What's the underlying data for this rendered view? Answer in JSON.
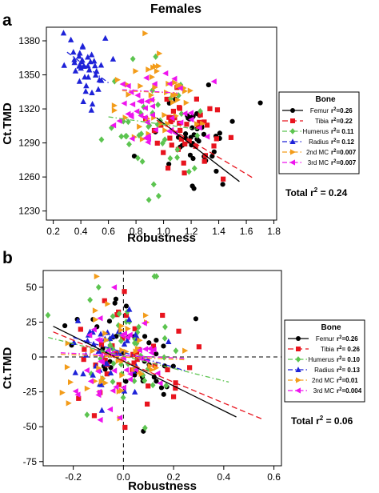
{
  "chart_data": [
    {
      "type": "scatter",
      "panel_label": "a",
      "title": "Females",
      "xlabel": "Robustness",
      "ylabel": "Ct.TMD",
      "xlim": [
        0.15,
        1.82
      ],
      "ylim": [
        1222,
        1392
      ],
      "xticks": [
        0.2,
        0.4,
        0.6,
        0.8,
        1.0,
        1.2,
        1.4,
        1.6,
        1.8
      ],
      "xtick_labels": [
        "0.2",
        "0.4",
        "0.6",
        "0.8",
        "1.0",
        "1.2",
        "1.4",
        "1.6",
        "1.8"
      ],
      "yticks": [
        1230,
        1260,
        1290,
        1320,
        1350,
        1380
      ],
      "ytick_labels": [
        "1230",
        "1260",
        "1290",
        "1320",
        "1350",
        "1380"
      ],
      "grid": false,
      "legend": {
        "title": "Bone",
        "placement": "right",
        "entries": [
          {
            "bone": "Femur",
            "r2_prefix": "r",
            "r2_sup": "2",
            "r2_value": "=0.26"
          },
          {
            "bone": "Tibia",
            "r2_prefix": "r",
            "r2_sup": "2",
            "r2_value": "=0.22"
          },
          {
            "bone": "Humerus",
            "r2_prefix": "r",
            "r2_sup": "2",
            "r2_value": "= 0.11"
          },
          {
            "bone": "Radius",
            "r2_prefix": "r",
            "r2_sup": "2",
            "r2_value": "= 0.12"
          },
          {
            "bone": "2nd MC",
            "r2_prefix": "r",
            "r2_sup": "2",
            "r2_value": "=0.007"
          },
          {
            "bone": "3rd MC",
            "r2_prefix": "r",
            "r2_sup": "2",
            "r2_value": "=0.007"
          }
        ]
      },
      "total_label": {
        "prefix": "Total r",
        "sup": "2",
        "value": " = 0.24"
      },
      "series": [
        {
          "name": "Femur",
          "color": "#000000",
          "marker": "circle",
          "line_style": "solid",
          "fit": [
            [
              0.95,
              1312
            ],
            [
              1.55,
              1256
            ]
          ],
          "center": [
            1.15,
            1296
          ],
          "spread": [
            0.18,
            22
          ],
          "n": 45
        },
        {
          "name": "Tibia",
          "color": "#e8141e",
          "marker": "square",
          "line_style": "dash",
          "fit": [
            [
              0.95,
              1310
            ],
            [
              1.65,
              1259
            ]
          ],
          "center": [
            1.18,
            1297
          ],
          "spread": [
            0.17,
            22
          ],
          "n": 42
        },
        {
          "name": "Humerus",
          "color": "#5cc450",
          "marker": "diamond",
          "line_style": "dashdot",
          "fit": [
            [
              0.6,
              1313
            ],
            [
              1.25,
              1302
            ]
          ],
          "center": [
            0.88,
            1305
          ],
          "spread": [
            0.2,
            25
          ],
          "n": 40
        },
        {
          "name": "Radius",
          "color": "#1e22d8",
          "marker": "triangle",
          "line_style": "dashdot",
          "fit": [
            [
              0.3,
              1370
            ],
            [
              0.6,
              1343
            ]
          ],
          "center": [
            0.45,
            1358
          ],
          "spread": [
            0.08,
            15
          ],
          "n": 42
        },
        {
          "name": "2nd MC",
          "color": "#f39c1a",
          "marker": "triangle-right",
          "line_style": "dashdot",
          "fit": [
            [
              0.7,
              1336
            ],
            [
              1.1,
              1334
            ]
          ],
          "center": [
            0.9,
            1330
          ],
          "spread": [
            0.17,
            20
          ],
          "n": 45
        },
        {
          "name": "3rd MC",
          "color": "#ee14ee",
          "marker": "triangle-left",
          "line_style": "dashdot",
          "fit": [
            [
              0.7,
              1337
            ],
            [
              1.1,
              1334
            ]
          ],
          "center": [
            0.88,
            1325
          ],
          "spread": [
            0.18,
            22
          ],
          "n": 45
        }
      ]
    },
    {
      "type": "scatter",
      "panel_label": "b",
      "title": "",
      "xlabel": "Robustness",
      "ylabel": "Ct.TMD",
      "xlim": [
        -0.32,
        0.63
      ],
      "ylim": [
        -78,
        62
      ],
      "xticks": [
        -0.2,
        0.0,
        0.2,
        0.4,
        0.6
      ],
      "xtick_labels": [
        "-0.2",
        "0.0",
        "0.2",
        "0.4",
        "0.6"
      ],
      "yticks": [
        -75,
        -50,
        -25,
        0,
        25,
        50
      ],
      "ytick_labels": [
        "-75",
        "-50",
        "-25",
        "0",
        "25",
        "50"
      ],
      "grid": false,
      "reference_lines": {
        "x": 0,
        "y": 0
      },
      "legend": {
        "title": "Bone",
        "placement": "right",
        "entries": [
          {
            "bone": "Femur",
            "r2_prefix": "r",
            "r2_sup": "2",
            "r2_value": "=0.26"
          },
          {
            "bone": "Tibia",
            "r2_prefix": "r",
            "r2_sup": "2",
            "r2_value": "= 0.26"
          },
          {
            "bone": "Humerus",
            "r2_prefix": "r",
            "r2_sup": "2",
            "r2_value": "= 0.10"
          },
          {
            "bone": "Radius",
            "r2_prefix": "r",
            "r2_sup": "2",
            "r2_value": "= 0.13"
          },
          {
            "bone": "2nd MC",
            "r2_prefix": "r",
            "r2_sup": "2",
            "r2_value": "=0.01"
          },
          {
            "bone": "3rd MC",
            "r2_prefix": "r",
            "r2_sup": "2",
            "r2_value": "=0.004"
          }
        ]
      },
      "total_label": {
        "prefix": "Total r",
        "sup": "2",
        "value": " = 0.06"
      },
      "series": [
        {
          "name": "Femur",
          "color": "#000000",
          "marker": "circle",
          "line_style": "solid",
          "fit": [
            [
              -0.28,
              22
            ],
            [
              0.45,
              -43
            ]
          ],
          "center": [
            0.0,
            2
          ],
          "spread": [
            0.11,
            20
          ],
          "n": 40
        },
        {
          "name": "Tibia",
          "color": "#e8141e",
          "marker": "square",
          "line_style": "dash",
          "fit": [
            [
              -0.28,
              18
            ],
            [
              0.56,
              -45
            ]
          ],
          "center": [
            0.02,
            0
          ],
          "spread": [
            0.12,
            20
          ],
          "n": 40
        },
        {
          "name": "Humerus",
          "color": "#5cc450",
          "marker": "diamond",
          "line_style": "dashdot",
          "fit": [
            [
              -0.3,
              14
            ],
            [
              0.42,
              -18
            ]
          ],
          "center": [
            0.0,
            3
          ],
          "spread": [
            0.12,
            20
          ],
          "n": 45
        },
        {
          "name": "Radius",
          "color": "#1e22d8",
          "marker": "triangle",
          "line_style": "dashdot",
          "fit": [
            [
              -0.2,
              14
            ],
            [
              0.25,
              -10
            ]
          ],
          "center": [
            -0.03,
            2
          ],
          "spread": [
            0.09,
            17
          ],
          "n": 40
        },
        {
          "name": "2nd MC",
          "color": "#f39c1a",
          "marker": "triangle-right",
          "line_style": "dashdot",
          "fit": [
            [
              -0.25,
              2
            ],
            [
              0.25,
              -2
            ]
          ],
          "center": [
            -0.03,
            3
          ],
          "spread": [
            0.1,
            18
          ],
          "n": 45
        },
        {
          "name": "3rd MC",
          "color": "#ee14ee",
          "marker": "triangle-left",
          "line_style": "dashdot",
          "fit": [
            [
              -0.25,
              3
            ],
            [
              0.25,
              -1
            ]
          ],
          "center": [
            -0.02,
            2
          ],
          "spread": [
            0.1,
            18
          ],
          "n": 45
        }
      ]
    }
  ]
}
